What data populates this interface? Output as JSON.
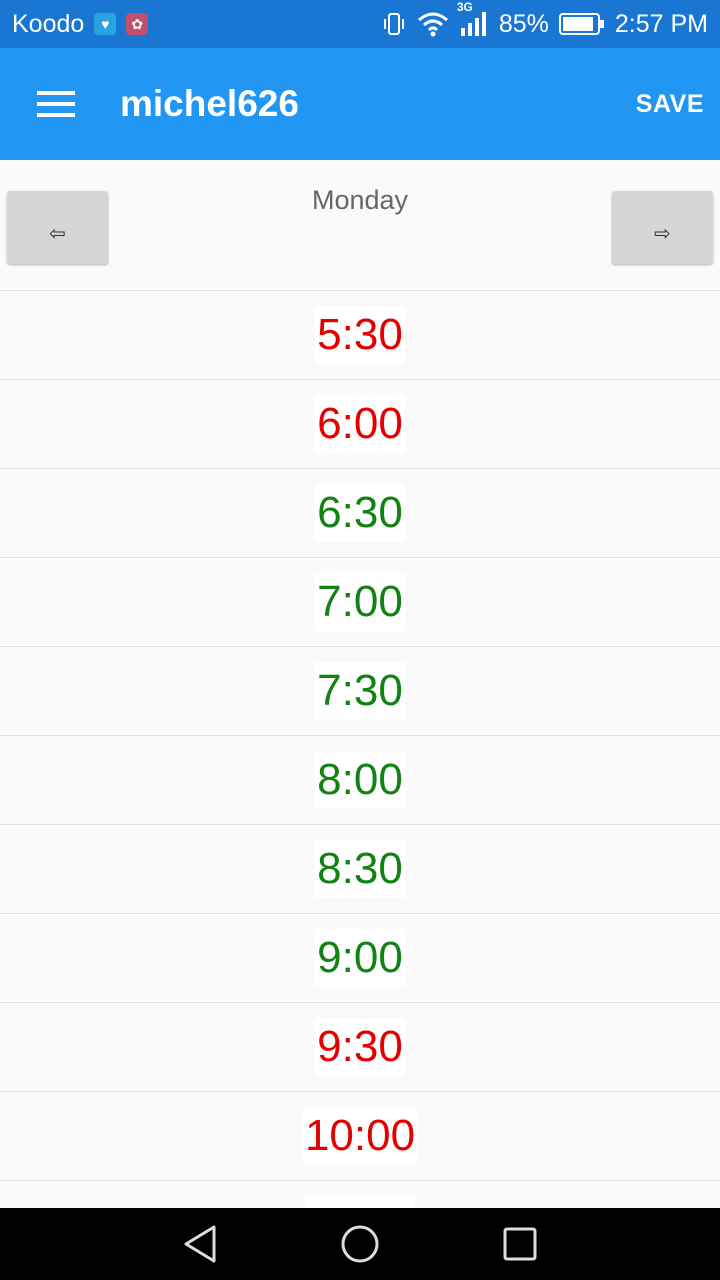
{
  "status_bar": {
    "carrier": "Koodo",
    "network": "3G",
    "battery": "85%",
    "time": "2:57 PM"
  },
  "toolbar": {
    "title": "michel626",
    "save_label": "SAVE"
  },
  "day_nav": {
    "day": "Monday",
    "prev_label": "⇦",
    "next_label": "⇨"
  },
  "slots": [
    {
      "time": "5:30",
      "status": "off"
    },
    {
      "time": "6:00",
      "status": "off"
    },
    {
      "time": "6:30",
      "status": "on"
    },
    {
      "time": "7:00",
      "status": "on"
    },
    {
      "time": "7:30",
      "status": "on"
    },
    {
      "time": "8:00",
      "status": "on"
    },
    {
      "time": "8:30",
      "status": "on"
    },
    {
      "time": "9:00",
      "status": "on"
    },
    {
      "time": "9:30",
      "status": "off"
    },
    {
      "time": "10:00",
      "status": "off"
    },
    {
      "time": "",
      "status": "off"
    }
  ],
  "colors": {
    "status_bar": "#1976d2",
    "toolbar": "#2196f3",
    "slot_off": "#e50000",
    "slot_on": "#128212"
  }
}
